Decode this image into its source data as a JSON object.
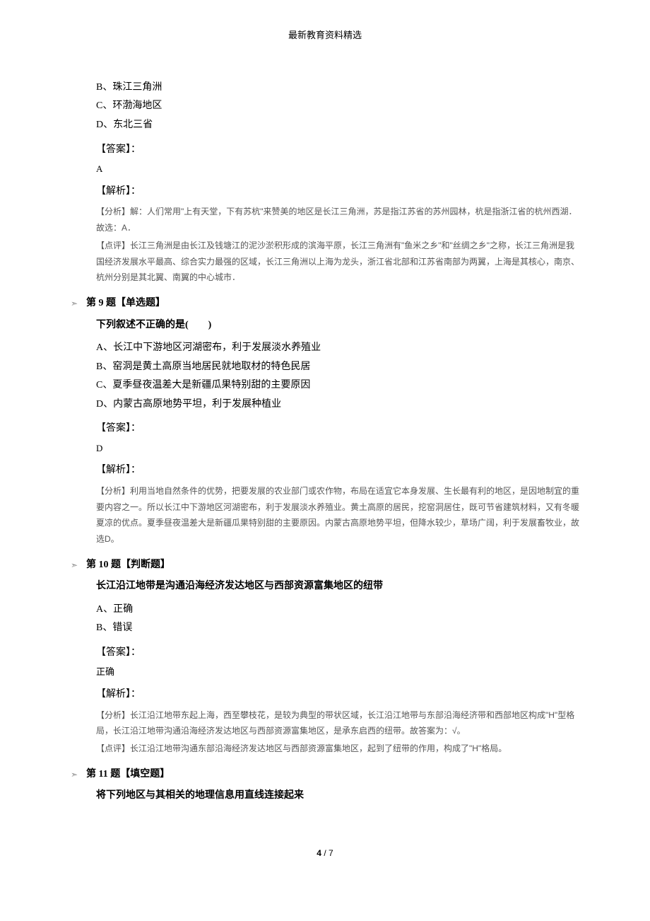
{
  "header": "最新教育资料精选",
  "q8": {
    "options": {
      "b": "B、珠江三角洲",
      "c": "C、环渤海地区",
      "d": "D、东北三省"
    },
    "answer_label": "【答案】：",
    "answer": "A",
    "analysis_label": "【解析】：",
    "analysis1": "【分析】解：人们常用\"上有天堂，下有苏杭\"来赞美的地区是长江三角洲，苏是指江苏省的苏州园林，杭是指浙江省的杭州西湖．故选：A．",
    "analysis2": "【点评】长江三角洲是由长江及钱塘江的泥沙淤积形成的滨海平原，长江三角洲有\"鱼米之乡\"和\"丝绸之乡\"之称，长江三角洲是我国经济发展水平最高、综合实力最强的区域，长江三角洲以上海为龙头，浙江省北部和江苏省南部为两翼，上海是其核心，南京、杭州分别是其北翼、南翼的中心城市．"
  },
  "q9": {
    "title": "第 9 题【单选题】",
    "stem": "下列叙述不正确的是(　　)",
    "options": {
      "a": "A、长江中下游地区河湖密布，利于发展淡水养殖业",
      "b": "B、窑洞是黄土高原当地居民就地取材的特色民居",
      "c": "C、夏季昼夜温差大是新疆瓜果特别甜的主要原因",
      "d": "D、内蒙古高原地势平坦，利于发展种植业"
    },
    "answer_label": "【答案】：",
    "answer": "D",
    "analysis_label": "【解析】：",
    "analysis1": "【分析】利用当地自然条件的优势，把要发展的农业部门或农作物，布局在适宜它本身发展、生长最有利的地区，是因地制宜的重要内容之一。所以长江中下游地区河湖密布，利于发展淡水养殖业。黄土高原的居民，挖窑洞居住，既可节省建筑材料，又有冬暖夏凉的优点。夏季昼夜温差大是新疆瓜果特别甜的主要原因。内蒙古高原地势平坦，但降水较少，草场广阔，利于发展畜牧业，故选D。"
  },
  "q10": {
    "title": "第 10 题【判断题】",
    "stem": "长江沿江地带是沟通沿海经济发达地区与西部资源富集地区的纽带",
    "options": {
      "a": "A、正确",
      "b": "B、错误"
    },
    "answer_label": "【答案】：",
    "answer": "正确",
    "analysis_label": "【解析】：",
    "analysis1": "【分析】长江沿江地带东起上海，西至攀枝花，是较为典型的带状区域，长江沿江地带与东部沿海经济带和西部地区构成\"H\"型格局，长江沿江地带沟通沿海经济发达地区与西部资源富集地区，是承东启西的纽带。故答案为：√。",
    "analysis2": "【点评】长江沿江地带沟通东部沿海经济发达地区与西部资源富集地区，起到了纽带的作用，构成了\"H\"格局。"
  },
  "q11": {
    "title": "第 11 题【填空题】",
    "stem": "将下列地区与其相关的地理信息用直线连接起来"
  },
  "page": {
    "cur": "4",
    "total": "7",
    "sep": " / "
  }
}
